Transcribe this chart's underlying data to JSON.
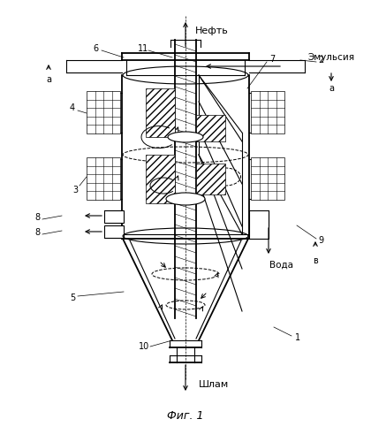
{
  "bg_color": "#ffffff",
  "line_color": "#000000",
  "labels": {
    "neft": "Нефть",
    "emulsiya": "Эмульсия",
    "voda": "Вода",
    "shlam": "Шлам",
    "fig": "Фиг. 1",
    "a": "а",
    "v": "в"
  }
}
